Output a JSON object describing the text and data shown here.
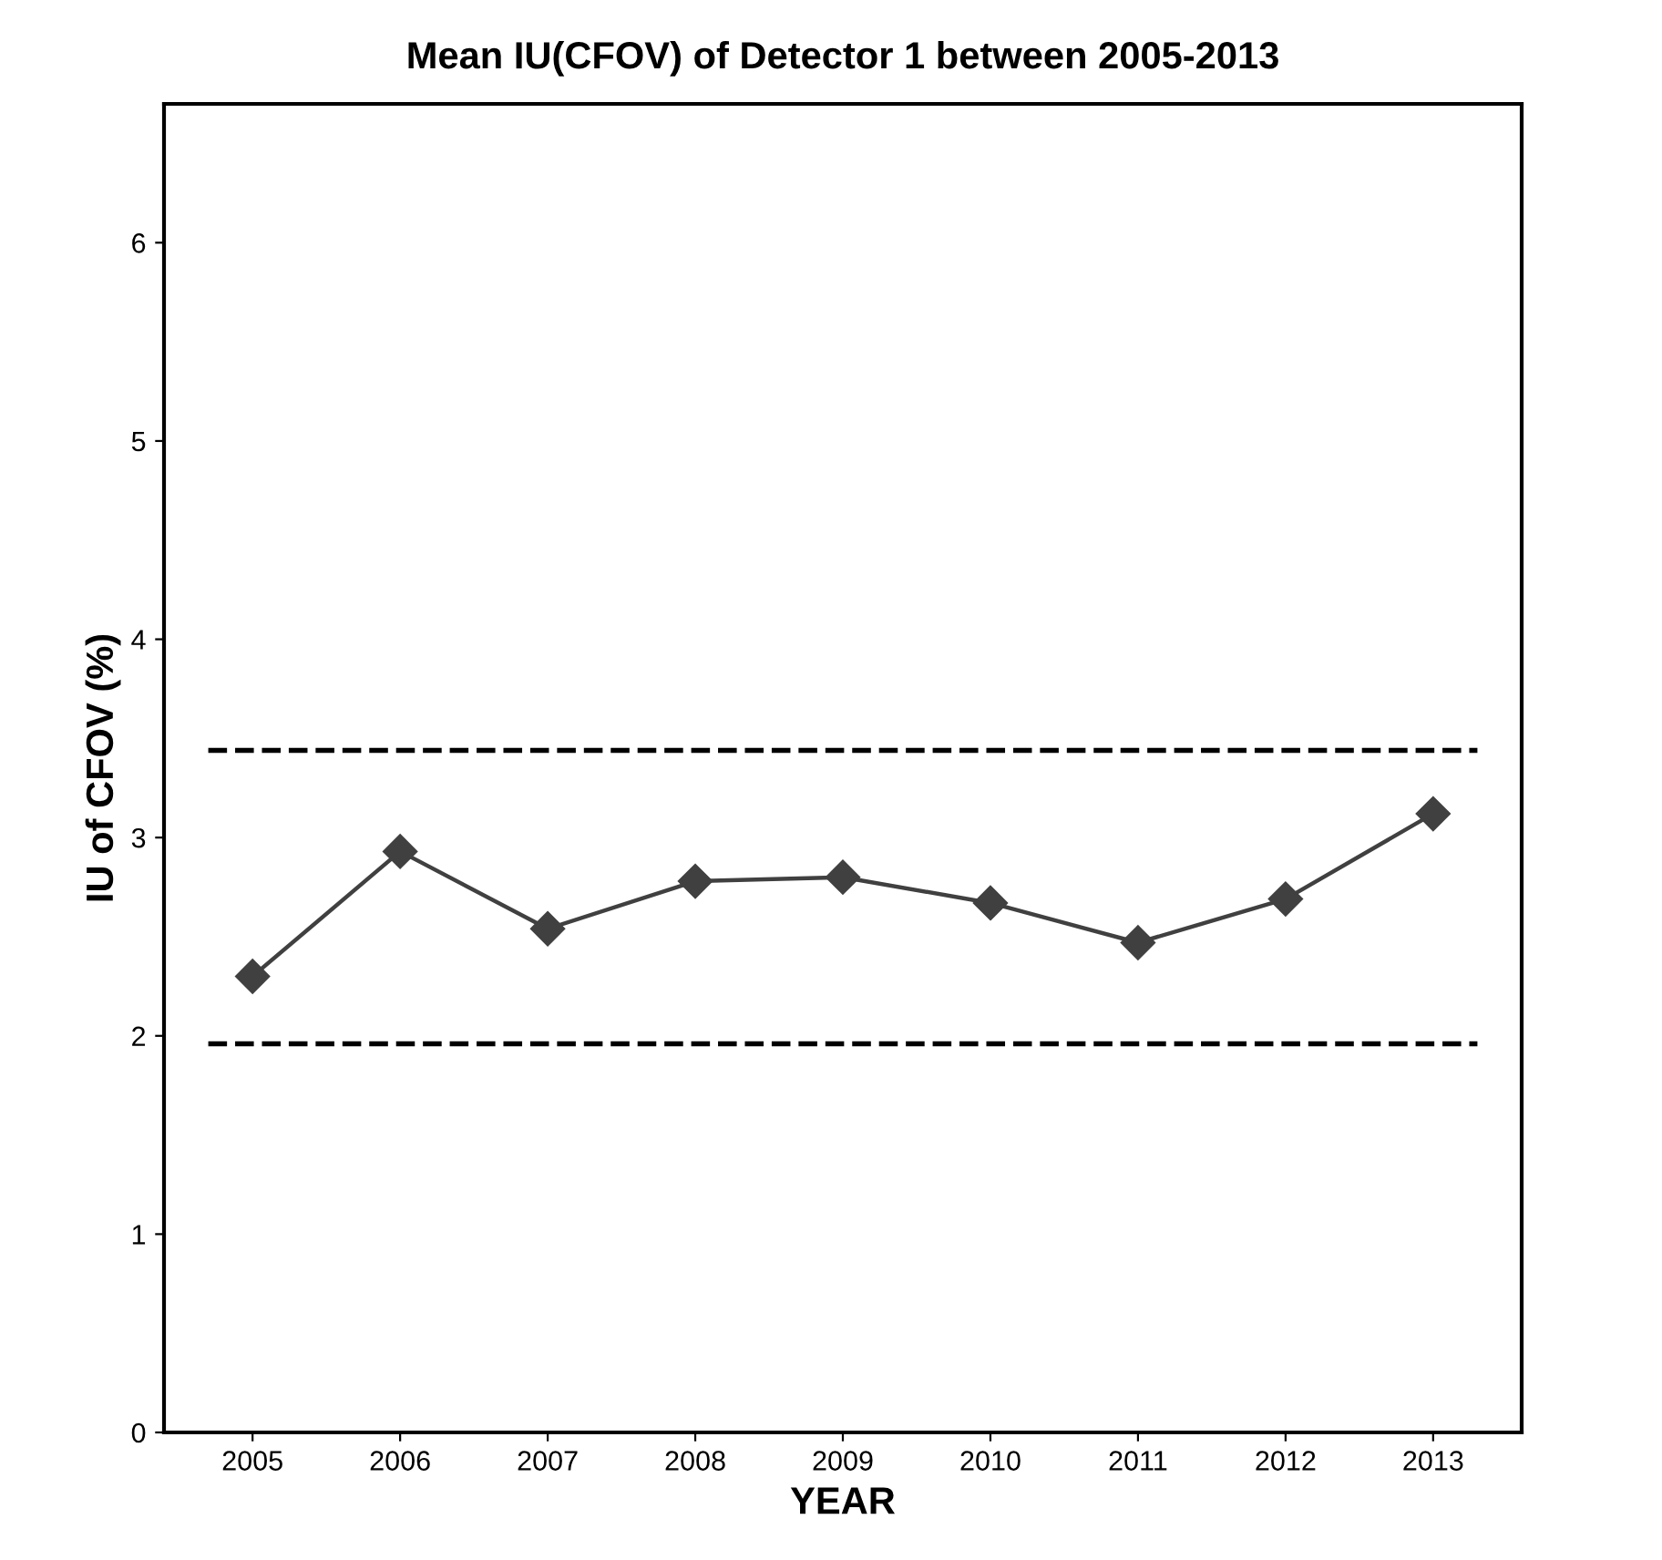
{
  "chart_data": {
    "type": "line",
    "title": "Mean IU(CFOV) of Detector 1 between 2005-2013",
    "xlabel": "YEAR",
    "ylabel": "IU of CFOV (%)",
    "categories": [
      "2005",
      "2006",
      "2007",
      "2008",
      "2009",
      "2010",
      "2011",
      "2012",
      "2013"
    ],
    "series": [
      {
        "color": "#404040",
        "values": [
          2.3,
          2.93,
          2.54,
          2.78,
          2.8,
          2.67,
          2.47,
          2.69,
          3.12
        ]
      }
    ],
    "ylim": [
      0,
      6.7
    ],
    "yticks": [
      0,
      1,
      2,
      3,
      4,
      5,
      6
    ],
    "marker": "diamond",
    "line_style": "solid",
    "grid": false,
    "legend": false,
    "ref_lines": [
      {
        "axis": "y",
        "value": 3.44,
        "color": "#000000",
        "line_style": "dashed"
      },
      {
        "axis": "y",
        "value": 1.96,
        "color": "#000000",
        "line_style": "dashed"
      }
    ]
  }
}
